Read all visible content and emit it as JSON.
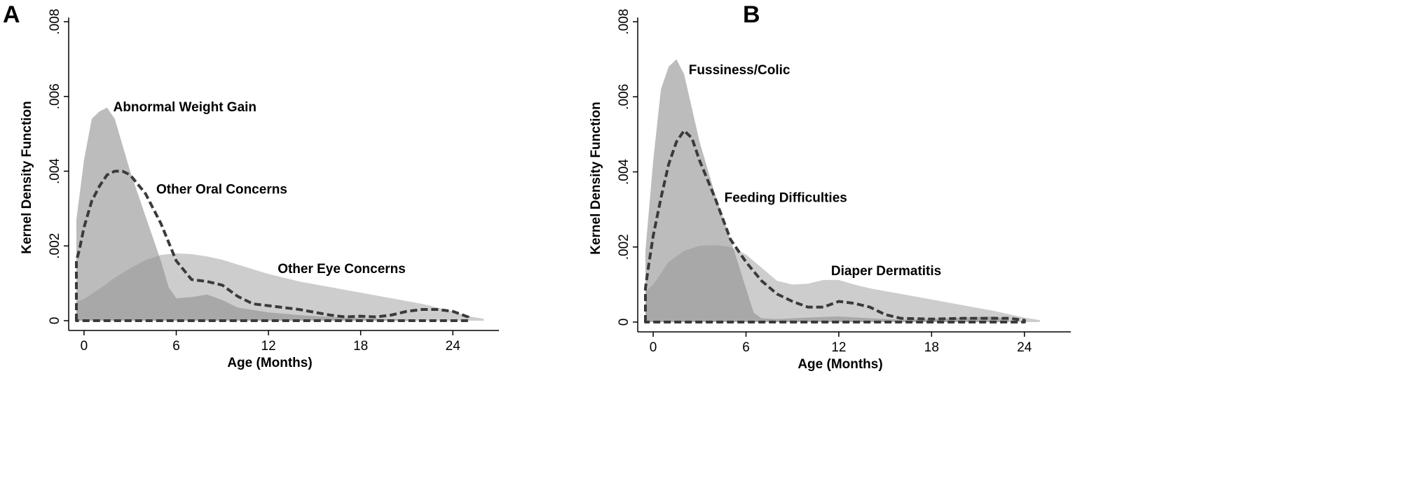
{
  "chart_data": [
    {
      "panel": "A",
      "type": "area",
      "ylabel": "Kernel Density Function",
      "xlabel": "Age (Months)",
      "xlim": [
        -1,
        27
      ],
      "ylim": [
        0,
        0.008
      ],
      "xticks": [
        0,
        6,
        12,
        18,
        24
      ],
      "xtick_labels": [
        "0",
        "6",
        "12",
        "18",
        "24"
      ],
      "yticks": [
        0,
        0.002,
        0.004,
        0.006,
        0.008
      ],
      "ytick_labels": [
        "0",
        ".002",
        ".004",
        ".006",
        ".008"
      ],
      "grid": false,
      "series": [
        {
          "name": "Other Eye Concerns",
          "style": "filled-light",
          "label_at": [
            12.6,
            0.00127
          ],
          "x": [
            -0.5,
            0,
            1,
            2,
            3,
            4,
            5,
            6,
            7,
            8,
            9,
            10,
            12,
            14,
            16,
            18,
            20,
            22,
            24,
            25,
            26
          ],
          "y": [
            0.0005,
            0.00058,
            0.00085,
            0.00115,
            0.0014,
            0.00162,
            0.00176,
            0.0018,
            0.00178,
            0.00172,
            0.00163,
            0.0015,
            0.00125,
            0.00105,
            0.0009,
            0.00075,
            0.0006,
            0.00045,
            0.00025,
            0.00012,
            5e-05
          ]
        },
        {
          "name": "Abnormal Weight Gain",
          "style": "filled-medium",
          "label_at": [
            1.9,
            0.0056
          ],
          "x": [
            -0.5,
            0,
            0.5,
            1,
            1.5,
            2,
            3,
            4,
            5,
            5.5,
            6,
            7,
            8,
            9,
            10,
            12,
            14,
            16,
            18,
            20,
            21.5
          ],
          "y": [
            0.0027,
            0.0043,
            0.0054,
            0.0056,
            0.0057,
            0.0054,
            0.004,
            0.0028,
            0.0016,
            0.0009,
            0.0006,
            0.00063,
            0.0007,
            0.00055,
            0.00035,
            0.00022,
            0.00015,
            0.0001,
            7e-05,
            4e-05,
            2e-05
          ]
        },
        {
          "name": "Other Oral Concerns",
          "style": "dashed-outline",
          "label_at": [
            4.7,
            0.0034
          ],
          "x": [
            -0.5,
            -0.3,
            0,
            0.5,
            1,
            1.5,
            2,
            2.5,
            3,
            4,
            5,
            6,
            7,
            8,
            9,
            10,
            11,
            12,
            14,
            16,
            17,
            18,
            19,
            20,
            21,
            22,
            23,
            24,
            25
          ],
          "y": [
            0.0016,
            0.0019,
            0.0025,
            0.0032,
            0.0036,
            0.0039,
            0.004,
            0.004,
            0.0039,
            0.0034,
            0.0026,
            0.0016,
            0.0011,
            0.00105,
            0.00095,
            0.00065,
            0.00045,
            0.0004,
            0.0003,
            0.00015,
            0.0001,
            0.00012,
            0.0001,
            0.00015,
            0.00025,
            0.0003,
            0.0003,
            0.00025,
            0.0001
          ]
        }
      ]
    },
    {
      "panel": "B",
      "type": "area",
      "ylabel": "Kernel Density Function",
      "xlabel": "Age (Months)",
      "xlim": [
        -1,
        27
      ],
      "ylim": [
        0,
        0.008
      ],
      "xticks": [
        0,
        6,
        12,
        18,
        24
      ],
      "xtick_labels": [
        "0",
        "6",
        "12",
        "18",
        "24"
      ],
      "yticks": [
        0,
        0.002,
        0.004,
        0.006,
        0.008
      ],
      "ytick_labels": [
        "0",
        ".002",
        ".004",
        ".006",
        ".008"
      ],
      "grid": false,
      "series": [
        {
          "name": "Diaper Dermatitis",
          "style": "filled-light",
          "label_at": [
            11.5,
            0.00125
          ],
          "x": [
            -0.5,
            0,
            1,
            2,
            3,
            4,
            5,
            6,
            7,
            8,
            9,
            10,
            11,
            12,
            13,
            14,
            16,
            18,
            20,
            22,
            24,
            25
          ],
          "y": [
            0.0008,
            0.001,
            0.0016,
            0.0019,
            0.00203,
            0.00205,
            0.002,
            0.0018,
            0.00145,
            0.0011,
            0.001,
            0.00102,
            0.00112,
            0.00112,
            0.001,
            0.0009,
            0.00075,
            0.0006,
            0.00045,
            0.0003,
            0.00012,
            5e-05
          ]
        },
        {
          "name": "Fussiness/Colic",
          "style": "filled-medium",
          "label_at": [
            2.3,
            0.0066
          ],
          "x": [
            -0.5,
            0,
            0.5,
            1,
            1.5,
            2,
            3,
            4,
            5,
            6,
            6.5,
            7,
            8,
            10,
            12,
            14,
            16,
            18,
            20,
            22,
            23
          ],
          "y": [
            0.0019,
            0.0043,
            0.0062,
            0.0068,
            0.007,
            0.0066,
            0.0048,
            0.0034,
            0.0022,
            0.0009,
            0.00025,
            0.0001,
            8e-05,
            0.00012,
            0.00015,
            0.0001,
            6e-05,
            8e-05,
            0.00012,
            0.00015,
            6e-05
          ]
        },
        {
          "name": "Feeding Difficulties",
          "style": "dashed-outline",
          "label_at": [
            4.6,
            0.0032
          ],
          "x": [
            -0.5,
            -0.3,
            0,
            0.5,
            1,
            1.5,
            2,
            2.5,
            3,
            4,
            5,
            6,
            7,
            8,
            9,
            10,
            11,
            12,
            13,
            14,
            15,
            16,
            18,
            20,
            22,
            23,
            24
          ],
          "y": [
            0.0009,
            0.0015,
            0.0023,
            0.0033,
            0.0042,
            0.0048,
            0.0051,
            0.0049,
            0.0043,
            0.0033,
            0.0022,
            0.0016,
            0.0011,
            0.00075,
            0.00055,
            0.0004,
            0.0004,
            0.00055,
            0.0005,
            0.0004,
            0.0002,
            0.0001,
            8e-05,
            0.0001,
            0.0001,
            0.0001,
            5e-05
          ]
        }
      ]
    }
  ]
}
